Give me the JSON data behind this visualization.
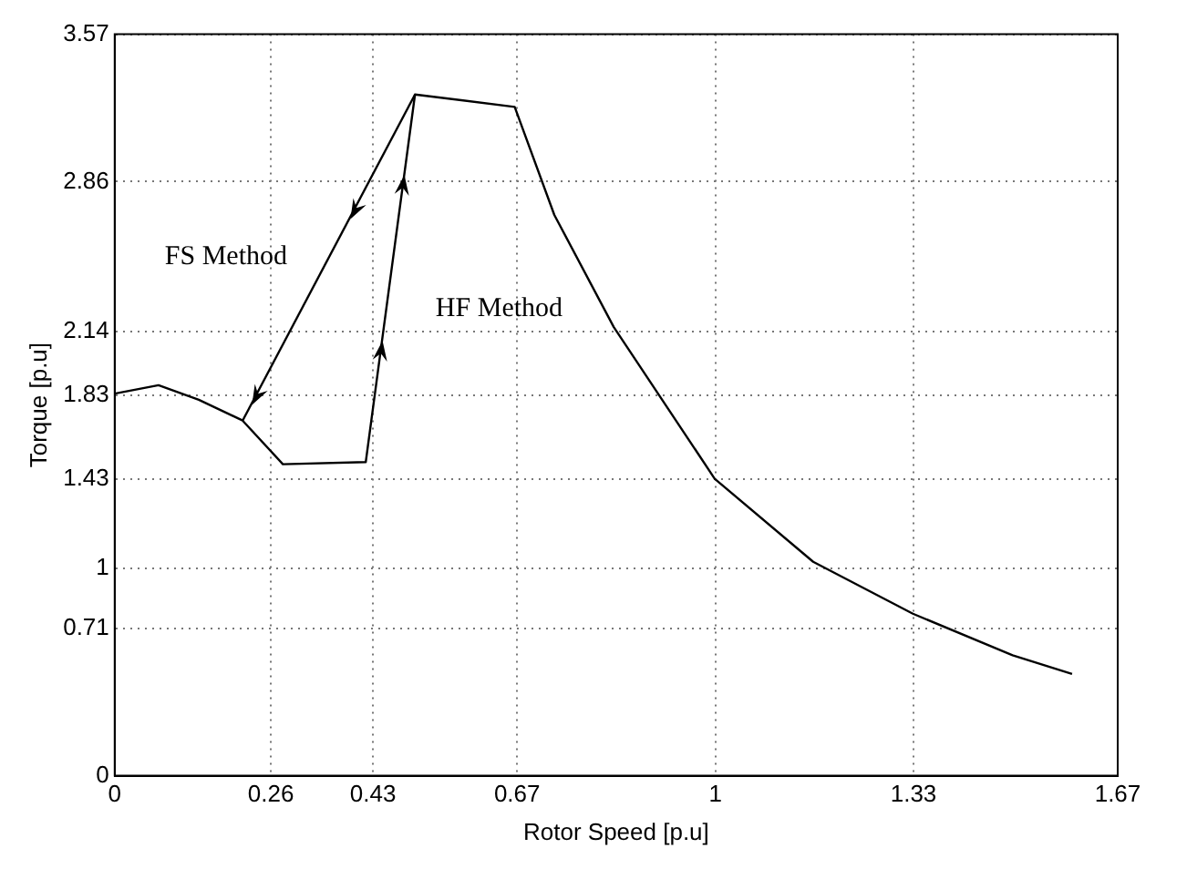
{
  "chart_data": {
    "type": "line",
    "xlabel": "Rotor Speed [p.u]",
    "ylabel": "Torque [p.u]",
    "series": [
      {
        "color": "#000000",
        "x": [
          0,
          0.073,
          0.14,
          0.213,
          0.28,
          0.418,
          0.5,
          0.666,
          0.732,
          0.831,
          0.999,
          1.163,
          1.329,
          1.495,
          1.594
        ],
        "values": [
          1.84,
          1.88,
          1.81,
          1.71,
          1.5,
          1.51,
          3.28,
          3.22,
          2.7,
          2.16,
          1.43,
          1.03,
          0.78,
          0.58,
          0.49
        ]
      },
      {
        "color": "#000000",
        "x": [
          0.5,
          0.213
        ],
        "values": [
          3.28,
          1.71
        ]
      }
    ],
    "xlim": [
      0,
      1.67
    ],
    "xticks": [
      0,
      0.26,
      0.43,
      0.67,
      1,
      1.33,
      1.67
    ],
    "ylim": [
      0,
      3.57
    ],
    "yticks": [
      0,
      0.71,
      1,
      1.43,
      1.83,
      2.14,
      2.86,
      3.57
    ],
    "grid": true,
    "marker": "none",
    "line_style": "solid",
    "legend": false,
    "annotations": [
      "FS Method",
      "HF Method"
    ]
  }
}
